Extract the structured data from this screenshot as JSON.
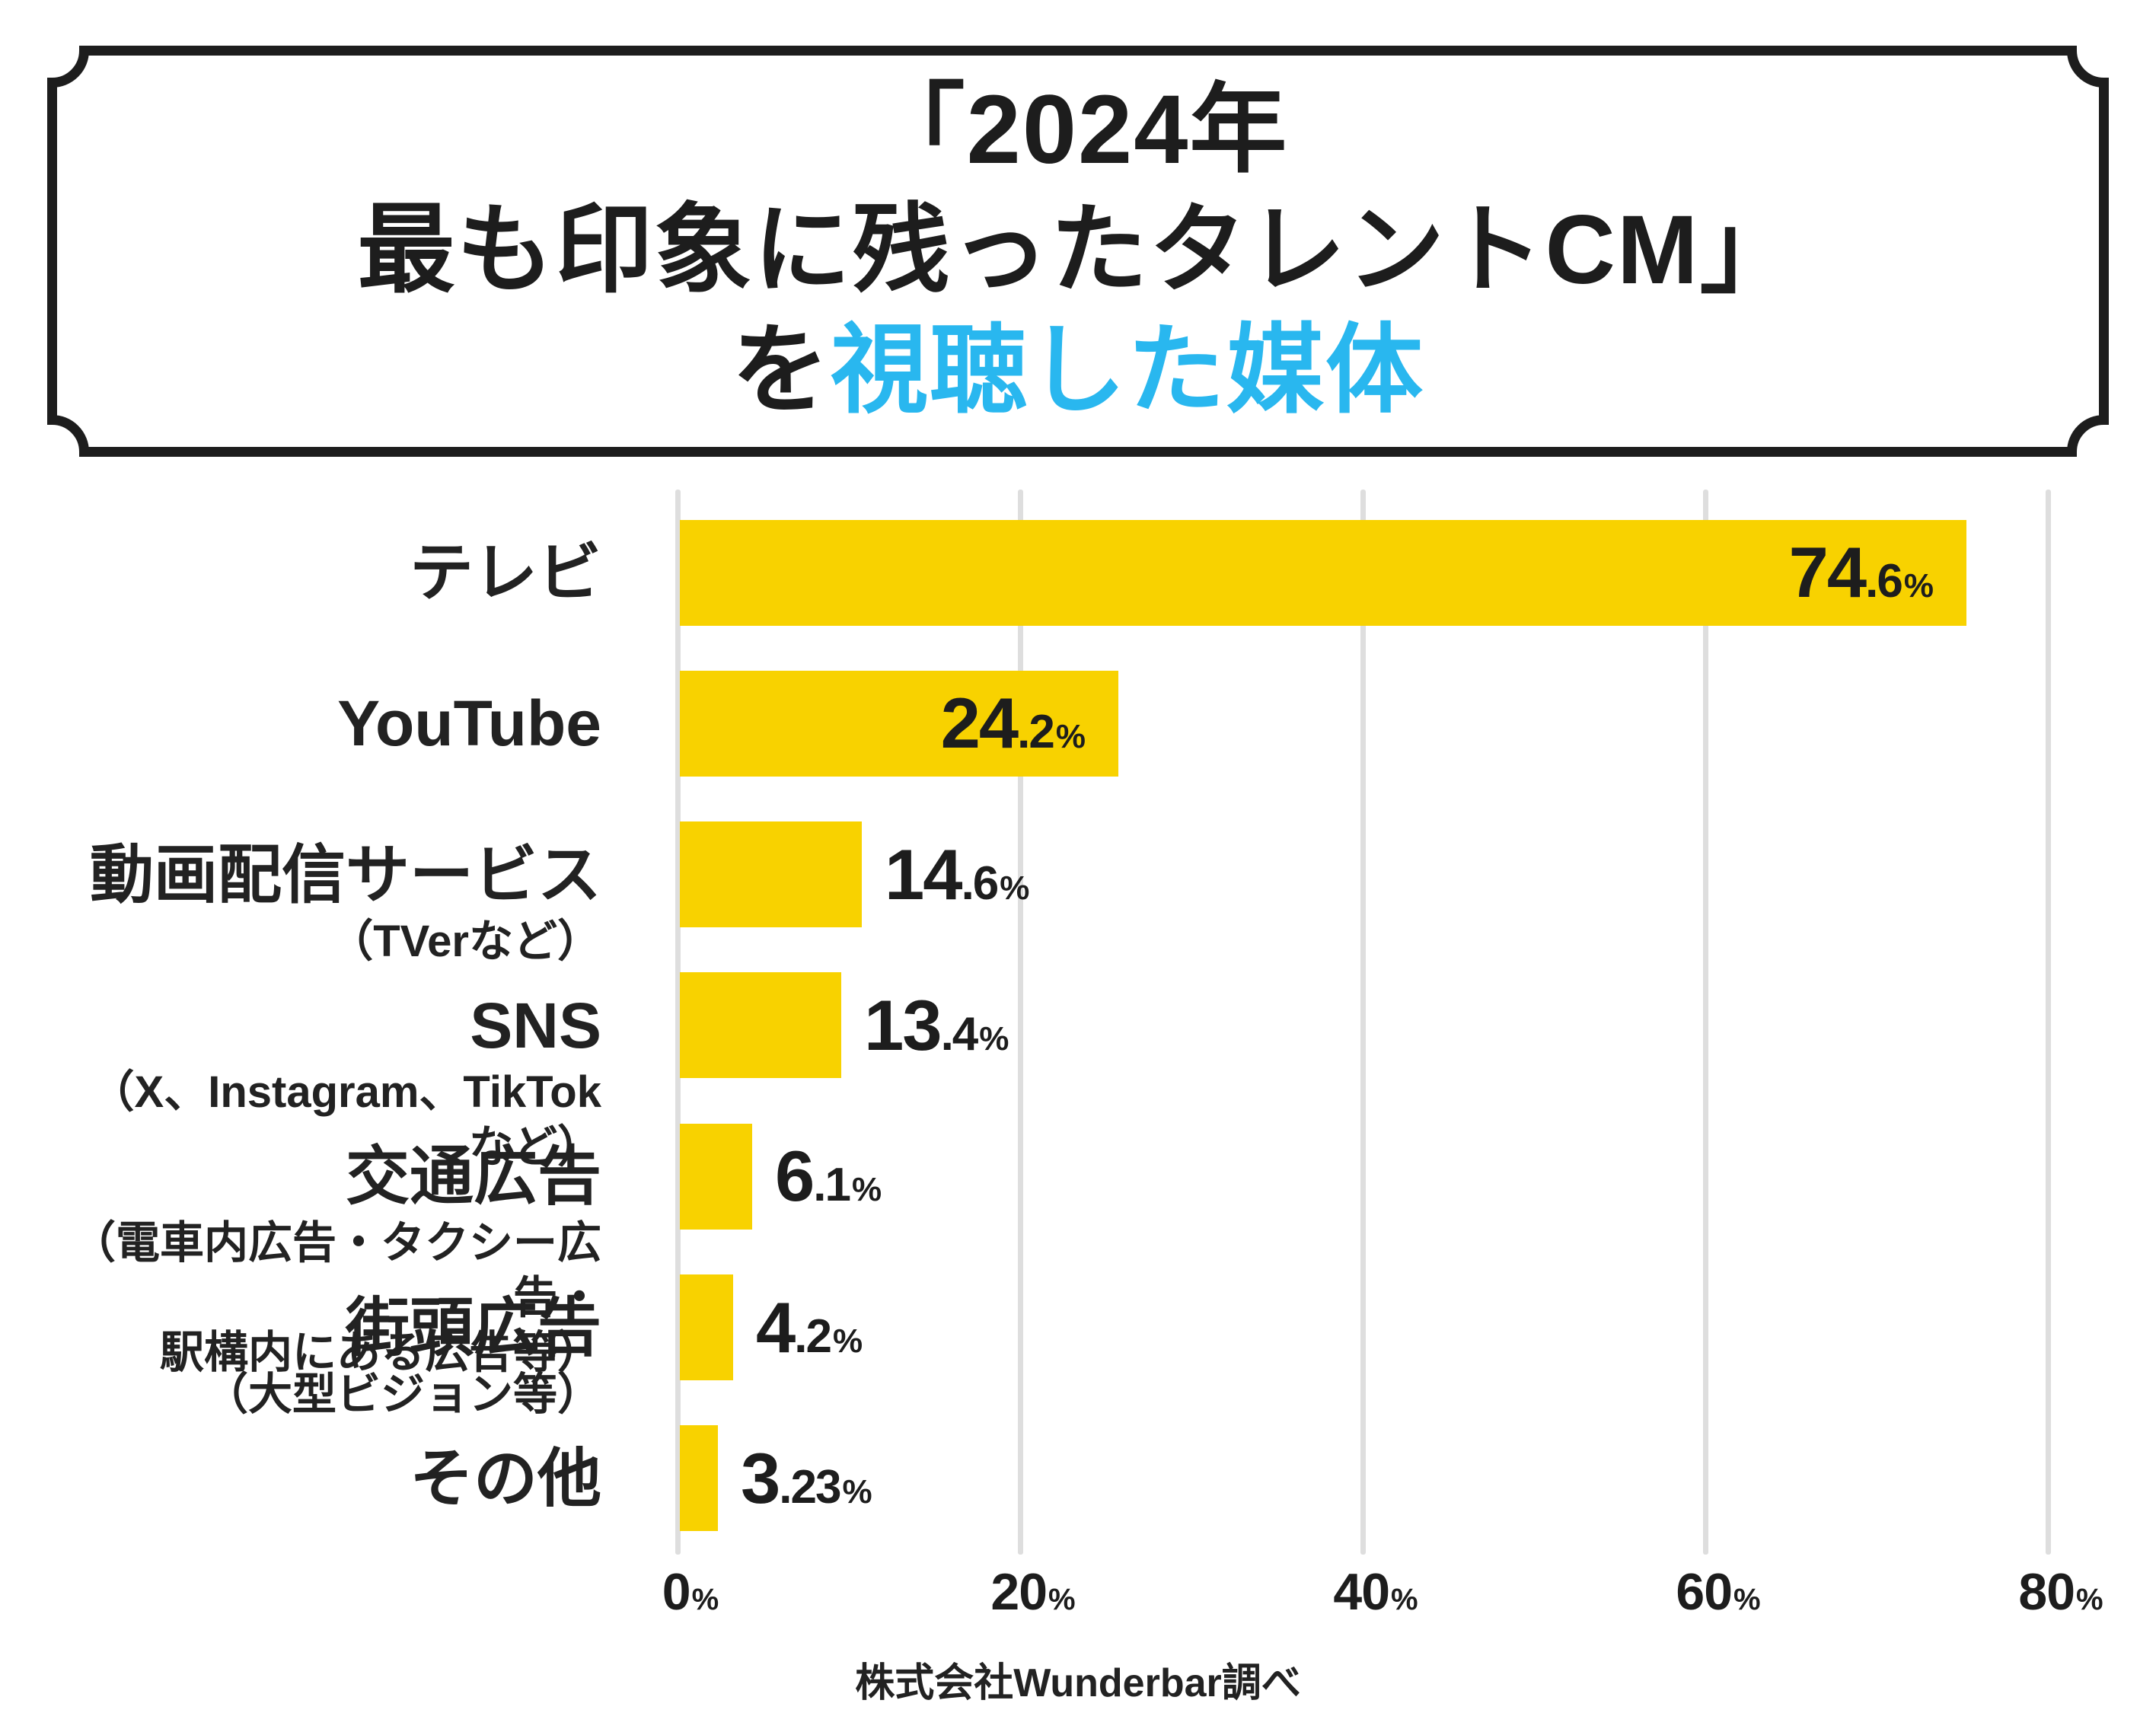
{
  "title": {
    "line1": "「2024年",
    "line2": "最も印象に残ったタレントCM」",
    "line3_prefix": "を",
    "line3_highlight": "視聴した媒体"
  },
  "source": "株式会社Wunderbar調べ",
  "colors": {
    "bar": "#f8d200",
    "highlight": "#29b7ef",
    "ink": "#1d1d1d",
    "grid": "#dedede"
  },
  "chart_data": {
    "type": "bar",
    "orientation": "horizontal",
    "unit": "%",
    "xlim": [
      0,
      80
    ],
    "x_ticks": [
      0,
      20,
      40,
      60,
      80
    ],
    "x_tick_suffix": "%",
    "grid": true,
    "legend": false,
    "categories": [
      "テレビ",
      "YouTube",
      "動画配信サービス",
      "SNS",
      "交通広告",
      "街頭広告",
      "その他"
    ],
    "values": [
      74.6,
      24.2,
      14.6,
      13.4,
      6.1,
      4.2,
      3.23
    ],
    "items": [
      {
        "label": "テレビ",
        "sublabel_lines": [],
        "value": 74.6,
        "value_text": "74.6%",
        "bar_length_axis_units": 75.1,
        "value_label_inside": true
      },
      {
        "label": "YouTube",
        "sublabel_lines": [],
        "value": 24.2,
        "value_text": "24.2%",
        "bar_length_axis_units": 25.6,
        "value_label_inside": true
      },
      {
        "label": "動画配信サービス",
        "sublabel_lines": [
          "（TVerなど）"
        ],
        "value": 14.6,
        "value_text": "14.6%",
        "bar_length_axis_units": 10.6,
        "value_label_inside": false
      },
      {
        "label": "SNS",
        "sublabel_lines": [
          "（X、Instagram、TikTokなど）"
        ],
        "value": 13.4,
        "value_text": "13.4%",
        "bar_length_axis_units": 9.4,
        "value_label_inside": false
      },
      {
        "label": "交通広告",
        "sublabel_lines": [
          "（電車内広告・タクシー広告・",
          "駅構内にある広告等）"
        ],
        "value": 6.1,
        "value_text": "6.1%",
        "bar_length_axis_units": 4.2,
        "value_label_inside": false
      },
      {
        "label": "街頭広告",
        "sublabel_lines": [
          "（大型ビジョン等）"
        ],
        "value": 4.2,
        "value_text": "4.2%",
        "bar_length_axis_units": 3.1,
        "value_label_inside": false
      },
      {
        "label": "その他",
        "sublabel_lines": [],
        "value": 3.23,
        "value_text": "3.23%",
        "bar_length_axis_units": 2.2,
        "value_label_inside": false
      }
    ]
  }
}
